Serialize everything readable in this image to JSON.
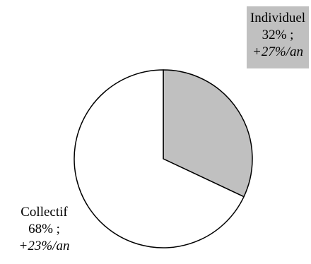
{
  "chart_data": {
    "type": "pie",
    "slices": [
      {
        "name": "Individuel",
        "share_label": "32% ;",
        "growth_label": "+27%/an",
        "value": 32,
        "color": "#c0c0c0"
      },
      {
        "name": "Collectif",
        "share_label": "68% ;",
        "growth_label": "+23%/an",
        "value": 68,
        "color": "#ffffff"
      }
    ],
    "legend": "none"
  }
}
